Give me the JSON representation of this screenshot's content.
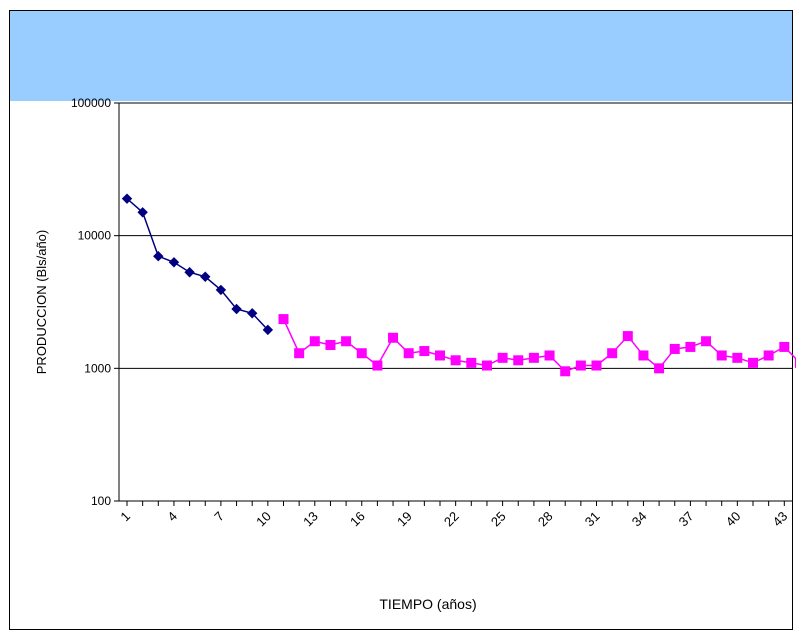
{
  "chart_data": {
    "type": "line",
    "title": "",
    "xlabel": "TIEMPO (años)",
    "ylabel": "PRODUCCION (Bls/año)",
    "y_scale": "log",
    "ylim": [
      100,
      100000
    ],
    "y_ticks": [
      "100",
      "1000",
      "10000",
      "100000"
    ],
    "xlim": [
      1,
      44
    ],
    "x_ticks": [
      "1",
      "4",
      "7",
      "10",
      "13",
      "16",
      "19",
      "22",
      "25",
      "28",
      "31",
      "34",
      "37",
      "40",
      "43"
    ],
    "grid": "horizontal major",
    "legend": "none",
    "colors": {
      "header_band": "#99ccff",
      "series_1": "#000080",
      "series_2": "#ff00ff"
    },
    "series": [
      {
        "marker": "diamond",
        "color": "#000080",
        "x": [
          1,
          2,
          3,
          4,
          5,
          6,
          7,
          8,
          9,
          10
        ],
        "values": [
          19000,
          15000,
          7000,
          6300,
          5300,
          4900,
          3900,
          2800,
          2600,
          1950
        ]
      },
      {
        "marker": "square",
        "color": "#ff00ff",
        "x": [
          11,
          12,
          13,
          14,
          15,
          16,
          17,
          18,
          19,
          20,
          21,
          22,
          23,
          24,
          25,
          26,
          27,
          28,
          29,
          30,
          31,
          32,
          33,
          34,
          35,
          36,
          37,
          38,
          39,
          40,
          41,
          42,
          43,
          44
        ],
        "values": [
          2350,
          1300,
          1600,
          1500,
          1600,
          1300,
          1050,
          1700,
          1300,
          1350,
          1250,
          1150,
          1100,
          1050,
          1200,
          1150,
          1200,
          1250,
          950,
          1050,
          1050,
          1300,
          1750,
          1250,
          1000,
          1400,
          1450,
          1600,
          1250,
          1200,
          1100,
          1250,
          1450,
          1100
        ]
      }
    ]
  }
}
